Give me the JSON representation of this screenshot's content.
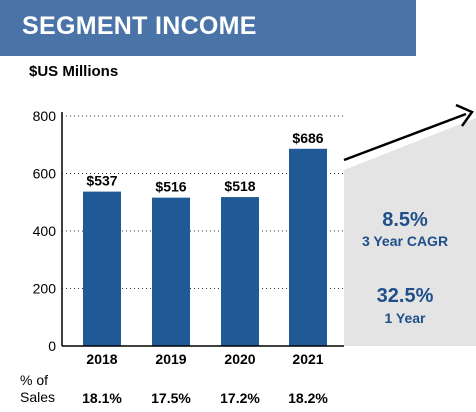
{
  "header": {
    "title": "SEGMENT INCOME"
  },
  "unit_label": "$US Millions",
  "chart_data": {
    "type": "bar",
    "categories": [
      "2018",
      "2019",
      "2020",
      "2021"
    ],
    "values": [
      537,
      516,
      518,
      686
    ],
    "data_labels": [
      "$537",
      "$516",
      "$518",
      "$686"
    ],
    "title": "SEGMENT INCOME",
    "ylabel": "$US Millions",
    "ylim": [
      0,
      800
    ],
    "yticks": [
      0,
      200,
      400,
      600,
      800
    ],
    "grid": "horizontal dotted",
    "bar_color": "#1f5a96"
  },
  "growth": {
    "cagr_value": "8.5%",
    "cagr_label": "3 Year CAGR",
    "one_year_value": "32.5%",
    "one_year_label": "1 Year",
    "panel_color": "#e4e4e4",
    "text_color": "#1f4f8a"
  },
  "footer": {
    "label_line1": "% of",
    "label_line2": "Sales",
    "values": [
      "18.1%",
      "17.5%",
      "17.2%",
      "18.2%"
    ]
  }
}
